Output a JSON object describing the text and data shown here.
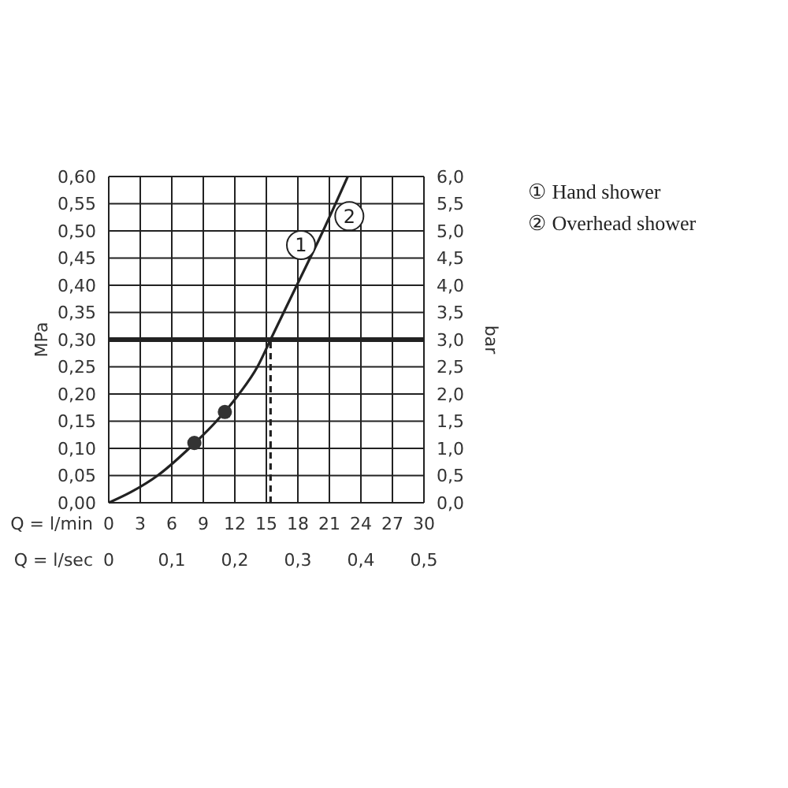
{
  "chart_data": {
    "type": "line",
    "xlabel": "Q = l/min",
    "x2label": "Q = l/sec",
    "ylabel": "MPa",
    "y2label": "bar",
    "xlim": [
      0,
      30
    ],
    "xticks": [
      0,
      3,
      6,
      9,
      12,
      15,
      18,
      21,
      24,
      27,
      30
    ],
    "x2lim": [
      0,
      0.5
    ],
    "x2ticks": [
      0,
      {
        "value": 0.1,
        "label": "0,1"
      },
      {
        "value": 0.2,
        "label": "0,2"
      },
      {
        "value": 0.3,
        "label": "0,3"
      },
      {
        "value": 0.4,
        "label": "0,4"
      },
      {
        "value": 0.5,
        "label": "0,5"
      }
    ],
    "ylim": [
      0,
      0.6
    ],
    "yticks": [
      {
        "value": 0,
        "label": "0,00"
      },
      {
        "value": 0.05,
        "label": "0,05"
      },
      {
        "value": 0.1,
        "label": "0,10"
      },
      {
        "value": 0.15,
        "label": "0,15"
      },
      {
        "value": 0.2,
        "label": "0,20"
      },
      {
        "value": 0.25,
        "label": "0,25"
      },
      {
        "value": 0.3,
        "label": "0,30"
      },
      {
        "value": 0.35,
        "label": "0,35"
      },
      {
        "value": 0.4,
        "label": "0,40"
      },
      {
        "value": 0.45,
        "label": "0,45"
      },
      {
        "value": 0.5,
        "label": "0,50"
      },
      {
        "value": 0.55,
        "label": "0,55"
      },
      {
        "value": 0.6,
        "label": "0,60"
      }
    ],
    "y2lim": [
      0,
      6
    ],
    "y2ticks": [
      {
        "value": 0,
        "label": "0,0"
      },
      {
        "value": 0.5,
        "label": "0,5"
      },
      {
        "value": 1,
        "label": "1,0"
      },
      {
        "value": 1.5,
        "label": "1,5"
      },
      {
        "value": 2,
        "label": "2,0"
      },
      {
        "value": 2.5,
        "label": "2,5"
      },
      {
        "value": 3,
        "label": "3,0"
      },
      {
        "value": 3.5,
        "label": "3,5"
      },
      {
        "value": 4,
        "label": "4,0"
      },
      {
        "value": 4.5,
        "label": "4,5"
      },
      {
        "value": 5,
        "label": "5,0"
      },
      {
        "value": 5.5,
        "label": "5,5"
      },
      {
        "value": 6,
        "label": "6,0"
      }
    ],
    "grid": true,
    "series": [
      {
        "type": "line",
        "color": "#222222",
        "marker": "none",
        "line_style": "solid",
        "x": [
          0,
          2.15,
          4.65,
          7.65,
          10.25,
          12.4,
          14.15,
          15.4,
          17.9,
          20.4,
          22.75
        ],
        "values": [
          0,
          0.02,
          0.05,
          0.1,
          0.15,
          0.2,
          0.25,
          0.3,
          0.4,
          0.5,
          0.6
        ]
      },
      {
        "type": "line",
        "color": "#222222",
        "marker": "none",
        "line_style": "dashed",
        "x": [
          15.4,
          15.4
        ],
        "values": [
          0,
          0.3
        ]
      },
      {
        "type": "scatter",
        "color": "#333333",
        "marker": "circle",
        "x": [
          8.15,
          11.05
        ],
        "values": [
          0.11,
          0.167
        ]
      }
    ],
    "ref_lines": [
      {
        "axis": "y",
        "value": 0.3,
        "color": "#222222",
        "line_style": "solid"
      }
    ],
    "annotations": [
      {
        "text": "1",
        "x": 18.3,
        "y": 0.474
      },
      {
        "text": "2",
        "x": 22.9,
        "y": 0.527
      },
      "① Hand shower",
      "② Overhead shower"
    ]
  }
}
